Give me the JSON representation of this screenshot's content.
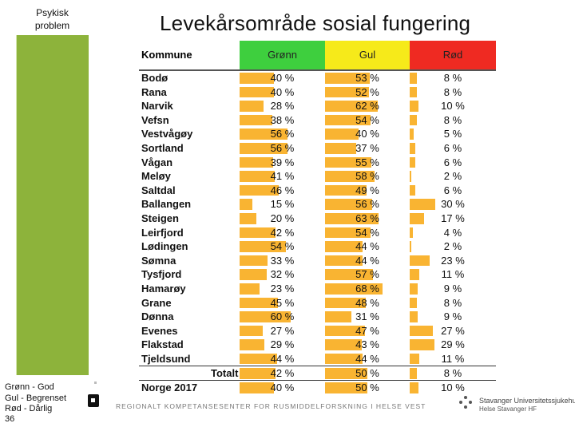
{
  "sidebar": {
    "title_line1": "Psykisk",
    "title_line2": "problem"
  },
  "title": "Levekårsområde sosial fungering",
  "table": {
    "headers": {
      "kommune": "Kommune",
      "green": "Grønn",
      "yellow": "Gul",
      "red": "Rød"
    },
    "rows": [
      {
        "name": "Bodø",
        "green": "40 %",
        "yellow": "53 %",
        "red": "8 %",
        "g": 40,
        "y": 53,
        "r": 8
      },
      {
        "name": "Rana",
        "green": "40 %",
        "yellow": "52 %",
        "red": "8 %",
        "g": 40,
        "y": 52,
        "r": 8
      },
      {
        "name": "Narvik",
        "green": "28 %",
        "yellow": "62 %",
        "red": "10 %",
        "g": 28,
        "y": 62,
        "r": 10
      },
      {
        "name": "Vefsn",
        "green": "38 %",
        "yellow": "54 %",
        "red": "8 %",
        "g": 38,
        "y": 54,
        "r": 8
      },
      {
        "name": "Vestvågøy",
        "green": "56 %",
        "yellow": "40 %",
        "red": "5 %",
        "g": 56,
        "y": 40,
        "r": 5
      },
      {
        "name": "Sortland",
        "green": "56 %",
        "yellow": "37 %",
        "red": "6 %",
        "g": 56,
        "y": 37,
        "r": 6
      },
      {
        "name": "Vågan",
        "green": "39 %",
        "yellow": "55 %",
        "red": "6 %",
        "g": 39,
        "y": 55,
        "r": 6
      },
      {
        "name": "Meløy",
        "green": "41 %",
        "yellow": "58 %",
        "red": "2 %",
        "g": 41,
        "y": 58,
        "r": 2
      },
      {
        "name": "Saltdal",
        "green": "46 %",
        "yellow": "49 %",
        "red": "6 %",
        "g": 46,
        "y": 49,
        "r": 6
      },
      {
        "name": "Ballangen",
        "green": "15 %",
        "yellow": "56 %",
        "red": "30 %",
        "g": 15,
        "y": 56,
        "r": 30
      },
      {
        "name": "Steigen",
        "green": "20 %",
        "yellow": "63 %",
        "red": "17 %",
        "g": 20,
        "y": 63,
        "r": 17
      },
      {
        "name": "Leirfjord",
        "green": "42 %",
        "yellow": "54 %",
        "red": "4 %",
        "g": 42,
        "y": 54,
        "r": 4
      },
      {
        "name": "Lødingen",
        "green": "54 %",
        "yellow": "44 %",
        "red": "2 %",
        "g": 54,
        "y": 44,
        "r": 2
      },
      {
        "name": "Sømna",
        "green": "33 %",
        "yellow": "44 %",
        "red": "23 %",
        "g": 33,
        "y": 44,
        "r": 23
      },
      {
        "name": "Tysfjord",
        "green": "32 %",
        "yellow": "57 %",
        "red": "11 %",
        "g": 32,
        "y": 57,
        "r": 11
      },
      {
        "name": "Hamarøy",
        "green": "23 %",
        "yellow": "68 %",
        "red": "9 %",
        "g": 23,
        "y": 68,
        "r": 9
      },
      {
        "name": "Grane",
        "green": "45 %",
        "yellow": "48 %",
        "red": "8 %",
        "g": 45,
        "y": 48,
        "r": 8
      },
      {
        "name": "Dønna",
        "green": "60 %",
        "yellow": "31 %",
        "red": "9 %",
        "g": 60,
        "y": 31,
        "r": 9
      },
      {
        "name": "Evenes",
        "green": "27 %",
        "yellow": "47 %",
        "red": "27 %",
        "g": 27,
        "y": 47,
        "r": 27
      },
      {
        "name": "Flakstad",
        "green": "29 %",
        "yellow": "43 %",
        "red": "29 %",
        "g": 29,
        "y": 43,
        "r": 29
      },
      {
        "name": "Tjeldsund",
        "green": "44 %",
        "yellow": "44 %",
        "red": "11 %",
        "g": 44,
        "y": 44,
        "r": 11
      }
    ],
    "total": {
      "name": "Totalt",
      "green": "42 %",
      "yellow": "50 %",
      "red": "8 %",
      "g": 42,
      "y": 50,
      "r": 8
    },
    "norway": {
      "name": "Norge 2017",
      "green": "40 %",
      "yellow": "50 %",
      "red": "10 %",
      "g": 40,
      "y": 50,
      "r": 10
    }
  },
  "legend": {
    "green": "Grønn - God",
    "yellow": "Gul    - Begrenset",
    "red": "Rød    - Dårlig"
  },
  "page_number": "36",
  "footer": {
    "center": "REGIONALT KOMPETANSESENTER FOR RUSMIDDELFORSKNING I HELSE VEST",
    "logo_line1": "Stavanger Universitetssjukehus",
    "logo_line2": "Helse Stavanger HF"
  },
  "colors": {
    "green": "#3ecf3e",
    "yellow": "#f6ea1a",
    "red": "#ef2a22",
    "bar": "#f9b432",
    "sidebar": "#8db33b"
  }
}
